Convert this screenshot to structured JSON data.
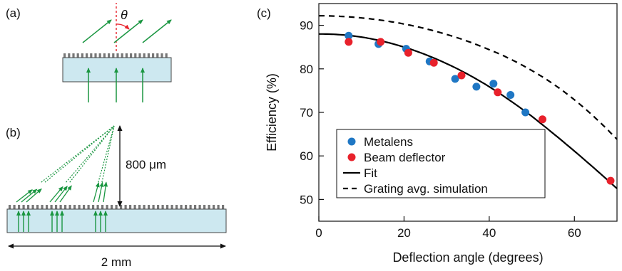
{
  "panels": {
    "a": {
      "label": "(a)",
      "angle_symbol": "θ"
    },
    "b": {
      "label": "(b)",
      "height_label": "800 μm",
      "width_label": "2 mm"
    },
    "c": {
      "label": "(c)"
    }
  },
  "colors": {
    "arrow_green": "#1a9641",
    "substrate_fill": "#cde8f0",
    "normal_dashed": "#e8212b",
    "metalens": "#1f77c4",
    "beam_deflector": "#e8212b",
    "curve": "#000000"
  },
  "chart_data": {
    "type": "scatter",
    "xlabel": "Deflection angle (degrees)",
    "ylabel": "Efficiency (%)",
    "xlim": [
      0,
      70
    ],
    "ylim": [
      45,
      95
    ],
    "xticks": [
      0,
      20,
      40,
      60
    ],
    "yticks": [
      50,
      60,
      70,
      80,
      90
    ],
    "grid": false,
    "legend_position": "bottom-left",
    "series": [
      {
        "name": "Metalens",
        "kind": "scatter",
        "color": "#1f77c4",
        "points": [
          [
            7,
            87.6
          ],
          [
            14,
            85.7
          ],
          [
            20.5,
            84.6
          ],
          [
            26,
            81.7
          ],
          [
            32,
            77.7
          ],
          [
            37,
            75.9
          ],
          [
            41,
            76.6
          ],
          [
            45,
            74.0
          ],
          [
            48.5,
            70.0
          ]
        ]
      },
      {
        "name": "Beam deflector",
        "kind": "scatter",
        "color": "#e8212b",
        "points": [
          [
            7,
            86.2
          ],
          [
            14.5,
            86.2
          ],
          [
            21,
            83.7
          ],
          [
            27,
            81.4
          ],
          [
            33.5,
            78.5
          ],
          [
            42,
            74.6
          ],
          [
            52.5,
            68.4
          ],
          [
            68.5,
            54.3
          ]
        ]
      },
      {
        "name": "Fit",
        "kind": "line",
        "style": "solid",
        "color": "#000000",
        "points": [
          [
            0,
            88.0
          ],
          [
            10,
            87.3
          ],
          [
            20,
            85.0
          ],
          [
            30,
            81.2
          ],
          [
            40,
            75.9
          ],
          [
            50,
            69.1
          ],
          [
            60,
            61.1
          ],
          [
            70,
            52.5
          ]
        ]
      },
      {
        "name": "Grating avg. simulation",
        "kind": "line",
        "style": "dashed",
        "color": "#000000",
        "points": [
          [
            0,
            92.2
          ],
          [
            10,
            91.7
          ],
          [
            20,
            90.3
          ],
          [
            30,
            87.9
          ],
          [
            40,
            84.4
          ],
          [
            50,
            79.6
          ],
          [
            60,
            72.9
          ],
          [
            70,
            63.8
          ]
        ]
      }
    ]
  }
}
